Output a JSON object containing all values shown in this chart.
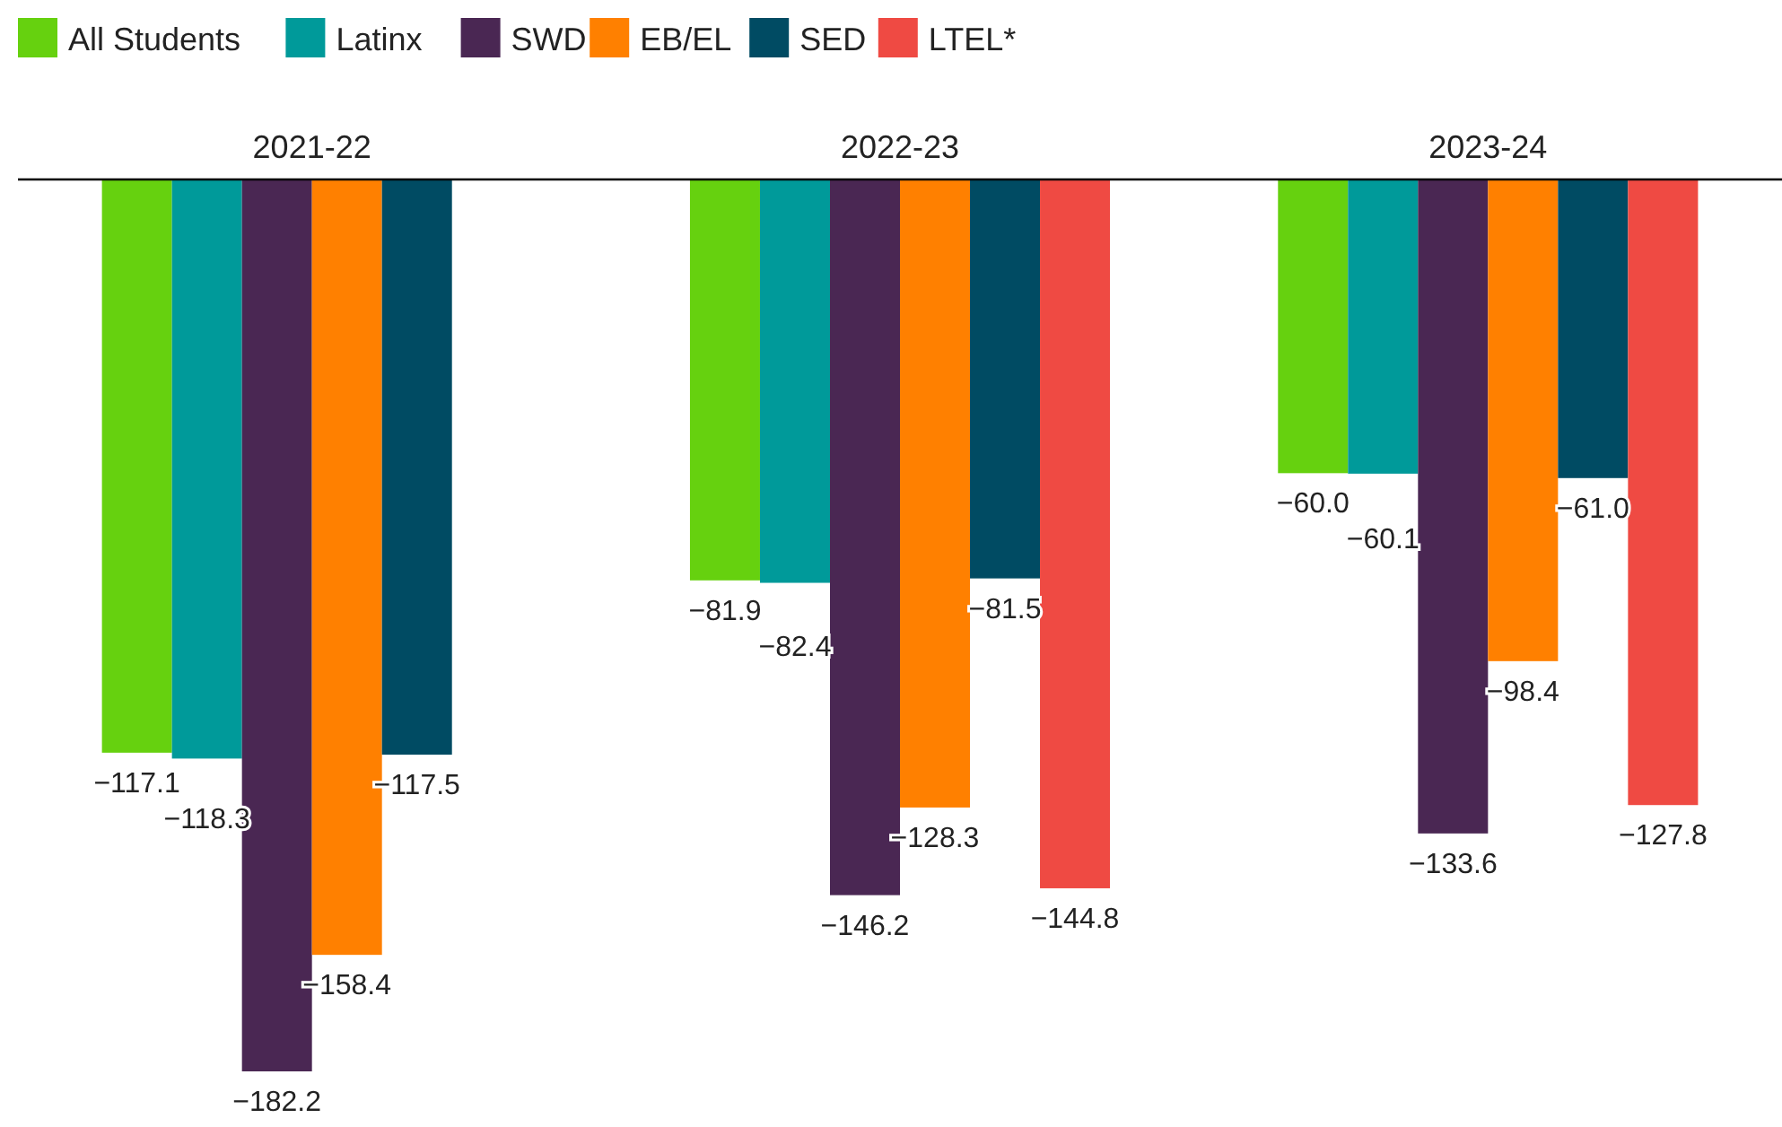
{
  "chart_data": {
    "type": "bar",
    "categories": [
      "2021-22",
      "2022-23",
      "2023-24"
    ],
    "legend": "top left",
    "series": [
      {
        "name": "All Students",
        "color": "#66d10f",
        "values": [
          -117.1,
          -81.9,
          -60.0
        ],
        "value_labels": [
          "−117.1",
          "−81.9",
          "−60.0"
        ]
      },
      {
        "name": "Latinx",
        "color": "#009a9a",
        "values": [
          -118.3,
          -82.4,
          -60.1
        ],
        "value_labels": [
          "−118.3",
          "−82.4",
          "−60.1"
        ]
      },
      {
        "name": "SWD",
        "color": "#4a2753",
        "values": [
          -182.2,
          -146.2,
          -133.6
        ],
        "value_labels": [
          "−182.2",
          "−146.2",
          "−133.6"
        ]
      },
      {
        "name": "EB/EL",
        "color": "#ff8000",
        "values": [
          -158.4,
          -128.3,
          -98.4
        ],
        "value_labels": [
          "−158.4",
          "−128.3",
          "−98.4"
        ]
      },
      {
        "name": "SED",
        "color": "#004b63",
        "values": [
          -117.5,
          -81.5,
          -61.0
        ],
        "value_labels": [
          "−117.5",
          "−81.5",
          "−61.0"
        ]
      },
      {
        "name": "LTEL*",
        "color": "#ef4a43",
        "values": [
          null,
          -144.8,
          -127.8
        ],
        "value_labels": [
          null,
          "−144.8",
          "−127.8"
        ]
      }
    ]
  }
}
